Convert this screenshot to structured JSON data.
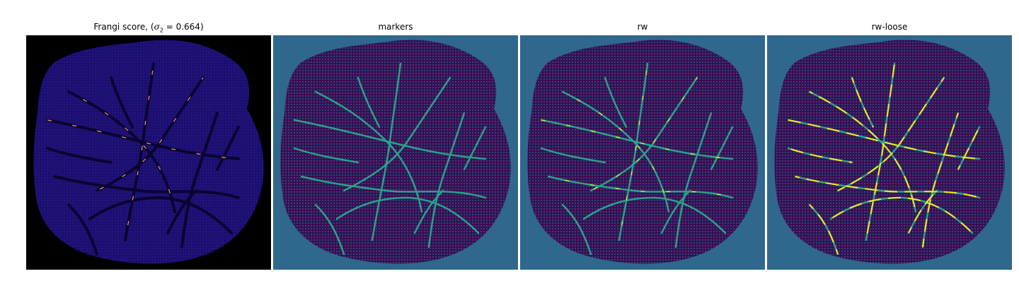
{
  "figure": {
    "panels": [
      {
        "title_text": "Frangi score, (",
        "title_math": "σ",
        "title_sub": "2",
        "title_rest": " = 0.664)",
        "background": "#000000",
        "tissue": "#1a0f6e",
        "vessel": "#0a0430",
        "highlight": "#f0a070",
        "colormap": "plasma"
      },
      {
        "title": "markers",
        "background": "#30678d",
        "tissue": "#3b0c56",
        "vessel": "#2aa18a",
        "highlight": "#2aa18a",
        "colormap": "viridis"
      },
      {
        "title": "rw",
        "background": "#30678d",
        "tissue": "#3b0c56",
        "vessel": "#2aa18a",
        "highlight": "#f5e61f",
        "colormap": "viridis"
      },
      {
        "title": "rw-loose",
        "background": "#30678d",
        "tissue": "#3b0c56",
        "vessel": "#2aa18a",
        "highlight": "#f5e61f",
        "colormap": "viridis"
      }
    ]
  }
}
